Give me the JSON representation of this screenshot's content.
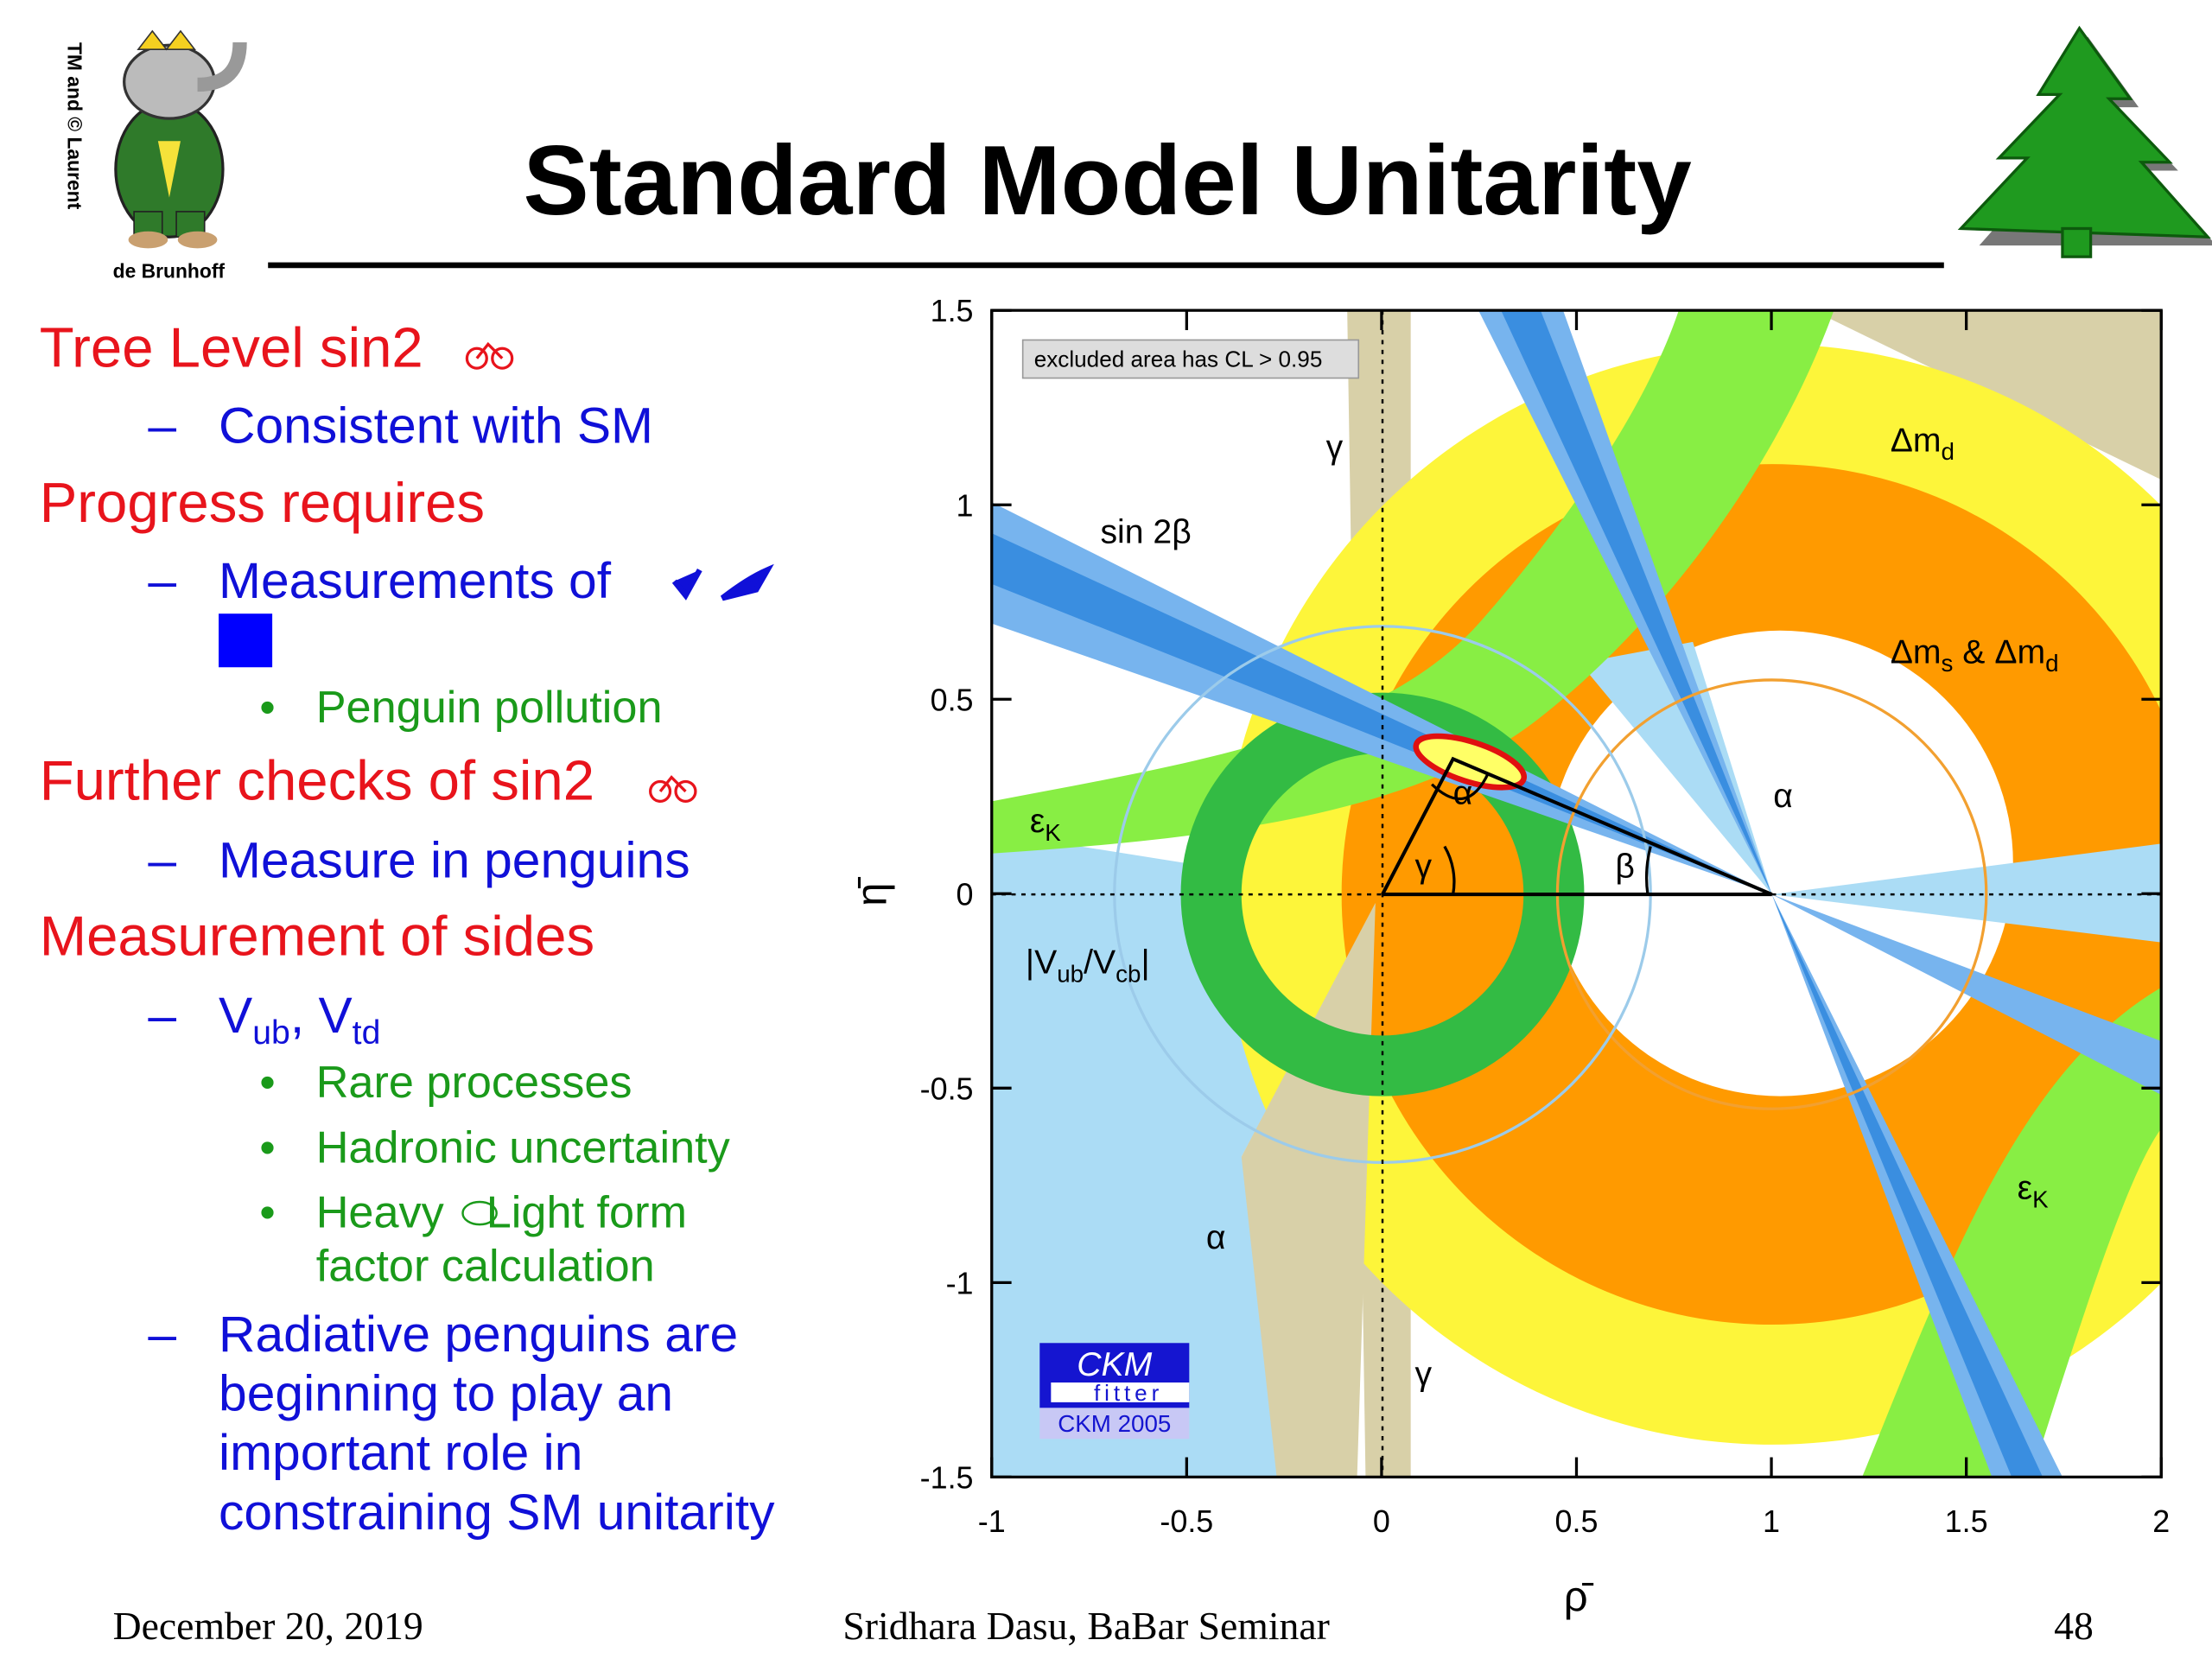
{
  "logo": {
    "credit": "TM and © Laurent",
    "credit2": "de Brunhoff"
  },
  "title": "Standard Model Unitarity",
  "bullets": {
    "b1": "Tree Level sin2",
    "b1a": "Consistent with SM",
    "b2": "Progress requires",
    "b2a": "Measurements of",
    "b2a1": "Penguin pollution",
    "b3": "Further checks of sin2",
    "b3a": "Measure in penguins",
    "b4": "Measurement of sides",
    "b4a": [
      "V",
      "ub",
      ", V",
      "td"
    ],
    "b4a1": "Rare processes",
    "b4a2": "Hadronic uncertainty",
    "b4a3": [
      "Heavy",
      "Light form",
      "factor calculation"
    ],
    "b4b": [
      "Radiative penguins are",
      "beginning to play an",
      "important role in",
      "constraining SM unitarity"
    ]
  },
  "plot": {
    "xlim": [
      -1,
      2
    ],
    "ylim": [
      -1.5,
      1.5
    ],
    "xticks": [
      -1,
      -0.5,
      0,
      0.5,
      1,
      1.5,
      2
    ],
    "yticks": [
      -1.5,
      -1,
      -0.5,
      0,
      0.5,
      1,
      1.5
    ],
    "xlabel": "ρ̄",
    "ylabel": "η̄",
    "legend": "excluded area has CL > 0.95",
    "badge": [
      "CKM",
      "fitter",
      "CKM 2005"
    ],
    "annotations": [
      {
        "parts": [
          "γ"
        ]
      },
      {
        "parts": [
          "Δm",
          "d"
        ]
      },
      {
        "parts": [
          "sin 2β"
        ]
      },
      {
        "parts": [
          "Δm",
          "s",
          " & Δm",
          "d"
        ]
      },
      {
        "parts": [
          "ε",
          "K"
        ]
      },
      {
        "parts": [
          "α"
        ]
      },
      {
        "parts": [
          "α"
        ]
      },
      {
        "parts": [
          "γ"
        ]
      },
      {
        "parts": [
          "β"
        ]
      },
      {
        "parts": [
          "|V",
          "ub",
          "/V",
          "cb",
          "|"
        ]
      },
      {
        "parts": [
          "α"
        ]
      },
      {
        "parts": [
          "γ"
        ]
      },
      {
        "parts": [
          "ε",
          "K"
        ]
      }
    ]
  },
  "footer": {
    "date": "December 20, 2019",
    "author": "Sridhara Dasu, BaBar Seminar",
    "page": "48"
  }
}
